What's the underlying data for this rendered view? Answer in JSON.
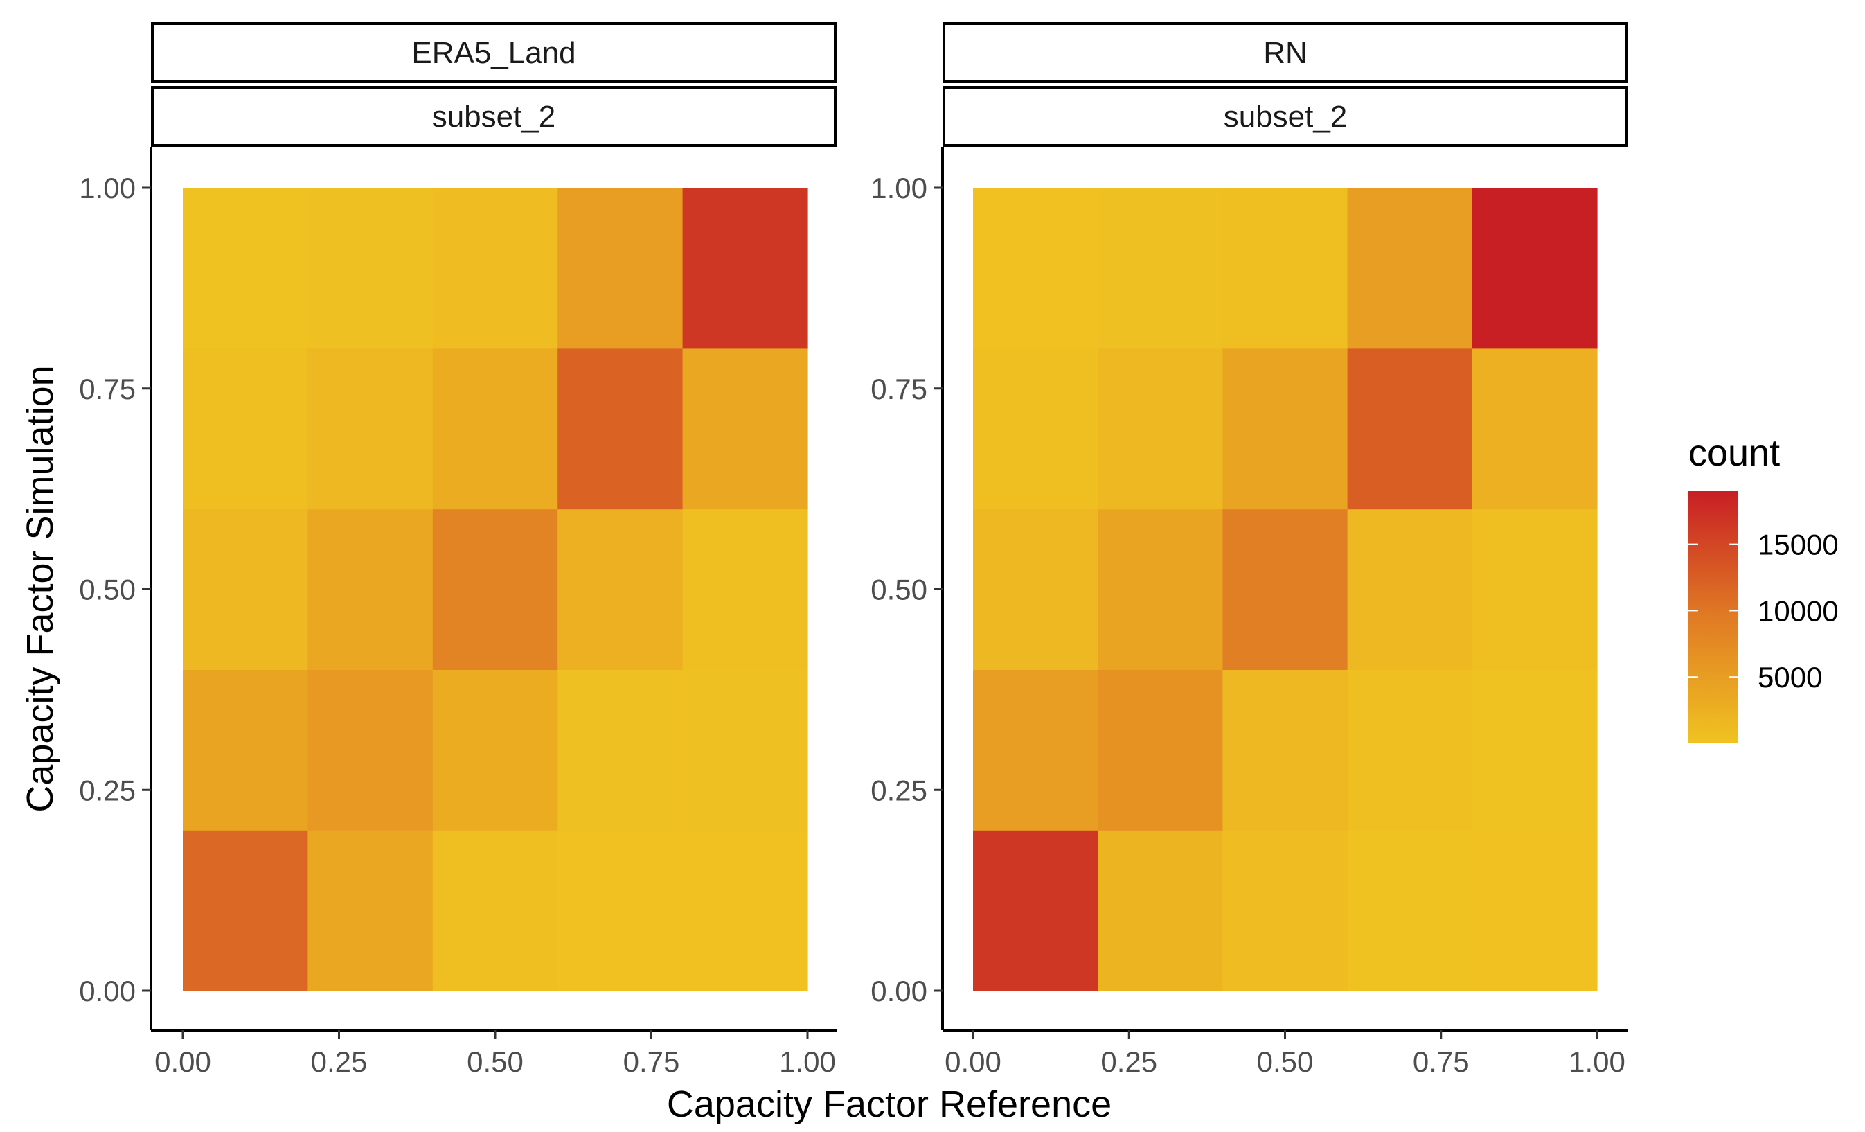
{
  "chart_data": {
    "type": "heatmap",
    "xlabel": "Capacity Factor Reference",
    "ylabel": "Capacity Factor Simulation",
    "xlim": [
      0,
      1
    ],
    "ylim": [
      0,
      1
    ],
    "x_ticks": [
      "0.00",
      "0.25",
      "0.50",
      "0.75",
      "1.00"
    ],
    "y_ticks": [
      "0.00",
      "0.25",
      "0.50",
      "0.75",
      "1.00"
    ],
    "grid": false,
    "bin_edges": [
      0,
      0.2,
      0.4,
      0.6,
      0.8,
      1.0
    ],
    "facets": [
      {
        "strip_top": "ERA5_Land",
        "strip_bottom": "subset_2",
        "counts": [
          [
            11500,
            3500,
            500,
            200,
            200
          ],
          [
            4000,
            5500,
            3000,
            400,
            400
          ],
          [
            1500,
            3500,
            8500,
            2500,
            500
          ],
          [
            600,
            1500,
            3000,
            12000,
            3500
          ],
          [
            300,
            400,
            800,
            5000,
            16500
          ]
        ]
      },
      {
        "strip_top": "RN",
        "strip_bottom": "subset_2",
        "counts": [
          [
            16500,
            2000,
            800,
            300,
            200
          ],
          [
            5000,
            6500,
            1500,
            500,
            300
          ],
          [
            1500,
            4000,
            9000,
            1500,
            500
          ],
          [
            500,
            1500,
            4000,
            12500,
            2500
          ],
          [
            200,
            400,
            600,
            5000,
            19000
          ]
        ]
      }
    ],
    "legend": {
      "title": "count",
      "placement": "right",
      "breaks": [
        5000,
        10000,
        15000
      ],
      "labels": [
        "5000",
        "10000",
        "15000"
      ],
      "range": [
        0,
        19000
      ],
      "low_color": "#f0c321",
      "mid_color": "#e07b24",
      "high_color": "#c81f24"
    }
  }
}
